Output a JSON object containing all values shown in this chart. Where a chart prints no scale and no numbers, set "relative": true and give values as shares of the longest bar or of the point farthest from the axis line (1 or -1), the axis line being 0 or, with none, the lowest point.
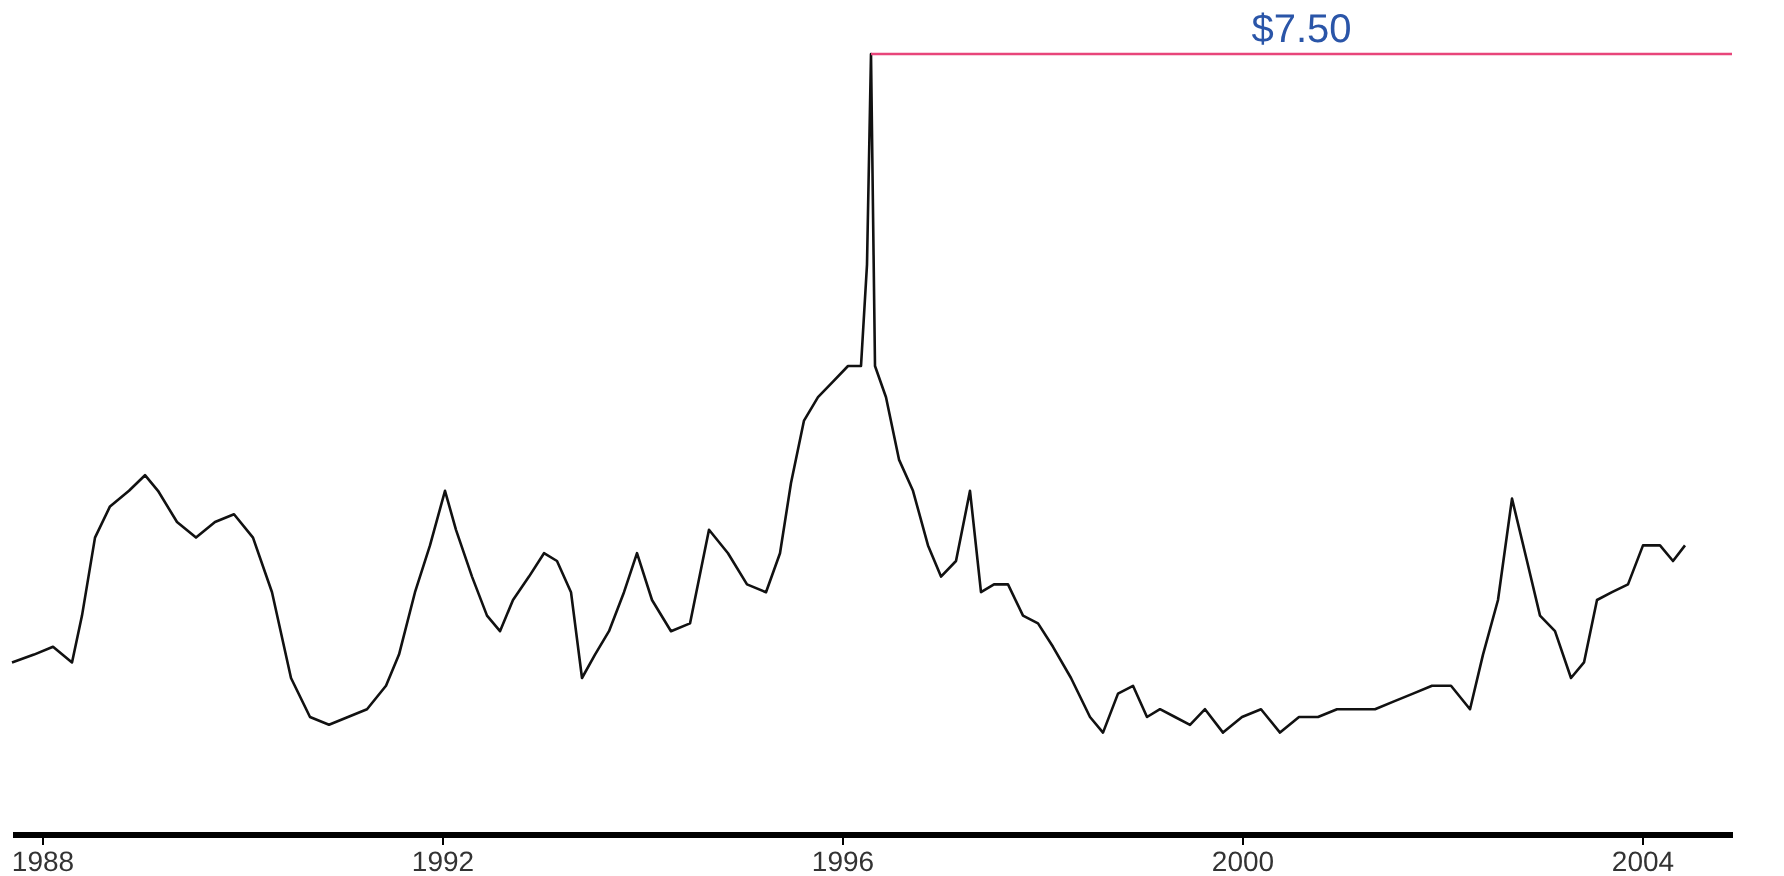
{
  "chart_data": {
    "type": "line",
    "relative": true,
    "x": [
      1987.7,
      1987.92,
      1988.11,
      1988.3,
      1988.4,
      1988.53,
      1988.68,
      1988.87,
      1989.03,
      1989.16,
      1989.35,
      1989.54,
      1989.73,
      1989.92,
      1990.11,
      1990.3,
      1990.49,
      1990.68,
      1990.87,
      1991.06,
      1991.25,
      1991.44,
      1991.57,
      1991.73,
      1991.88,
      1992.03,
      1992.14,
      1992.3,
      1992.45,
      1992.58,
      1992.71,
      1992.87,
      1993.02,
      1993.15,
      1993.29,
      1993.4,
      1993.53,
      1993.67,
      1993.82,
      1993.95,
      1994.1,
      1994.29,
      1994.48,
      1994.67,
      1994.86,
      1995.05,
      1995.24,
      1995.38,
      1995.49,
      1995.62,
      1995.76,
      1995.91,
      1996.06,
      1996.19,
      1996.25,
      1996.29,
      1996.33,
      1996.44,
      1996.57,
      1996.71,
      1996.86,
      1996.99,
      1997.14,
      1997.28,
      1997.39,
      1997.52,
      1997.66,
      1997.81,
      1997.96,
      1998.11,
      1998.29,
      1998.48,
      1998.61,
      1998.76,
      1998.91,
      1999.05,
      1999.18,
      1999.33,
      1999.48,
      1999.63,
      1999.81,
      2000.0,
      2000.19,
      2000.38,
      2000.57,
      2000.76,
      2000.95,
      2001.14,
      2001.33,
      2001.52,
      2001.71,
      2001.9,
      2002.09,
      2002.28,
      2002.41,
      2002.56,
      2002.7,
      2002.85,
      2002.98,
      2003.13,
      2003.29,
      2003.42,
      2003.55,
      2003.7,
      2003.86,
      2004.01,
      2004.18,
      2004.31,
      2004.43
    ],
    "series": [
      {
        "color": "#111111",
        "values": [
          0.22,
          0.23,
          0.24,
          0.22,
          0.28,
          0.38,
          0.42,
          0.44,
          0.46,
          0.44,
          0.4,
          0.38,
          0.4,
          0.41,
          0.38,
          0.31,
          0.2,
          0.15,
          0.14,
          0.15,
          0.16,
          0.19,
          0.23,
          0.31,
          0.37,
          0.44,
          0.39,
          0.33,
          0.28,
          0.26,
          0.3,
          0.33,
          0.36,
          0.35,
          0.31,
          0.2,
          0.23,
          0.26,
          0.31,
          0.36,
          0.3,
          0.26,
          0.27,
          0.39,
          0.36,
          0.32,
          0.31,
          0.36,
          0.45,
          0.53,
          0.56,
          0.58,
          0.6,
          0.6,
          0.73,
          1,
          0.6,
          0.56,
          0.48,
          0.44,
          0.37,
          0.33,
          0.35,
          0.44,
          0.31,
          0.32,
          0.32,
          0.28,
          0.27,
          0.24,
          0.2,
          0.15,
          0.13,
          0.18,
          0.19,
          0.15,
          0.16,
          0.15,
          0.14,
          0.16,
          0.13,
          0.15,
          0.16,
          0.13,
          0.15,
          0.15,
          0.16,
          0.16,
          0.16,
          0.17,
          0.18,
          0.19,
          0.19,
          0.16,
          0.23,
          0.3,
          0.43,
          0.35,
          0.28,
          0.26,
          0.2,
          0.22,
          0.3,
          0.31,
          0.32,
          0.37,
          0.37,
          0.35,
          0.37
        ]
      }
    ],
    "xlim": [
      1987.7,
      2004.9
    ],
    "xticks": [
      1988,
      1992,
      1996,
      2000,
      2004
    ],
    "ref_lines": [
      {
        "axis": "y",
        "value": 1,
        "color": "#e8457a"
      }
    ],
    "annotations": [
      "$7.50"
    ],
    "grid": false,
    "marker": "none",
    "line_style": "solid"
  }
}
